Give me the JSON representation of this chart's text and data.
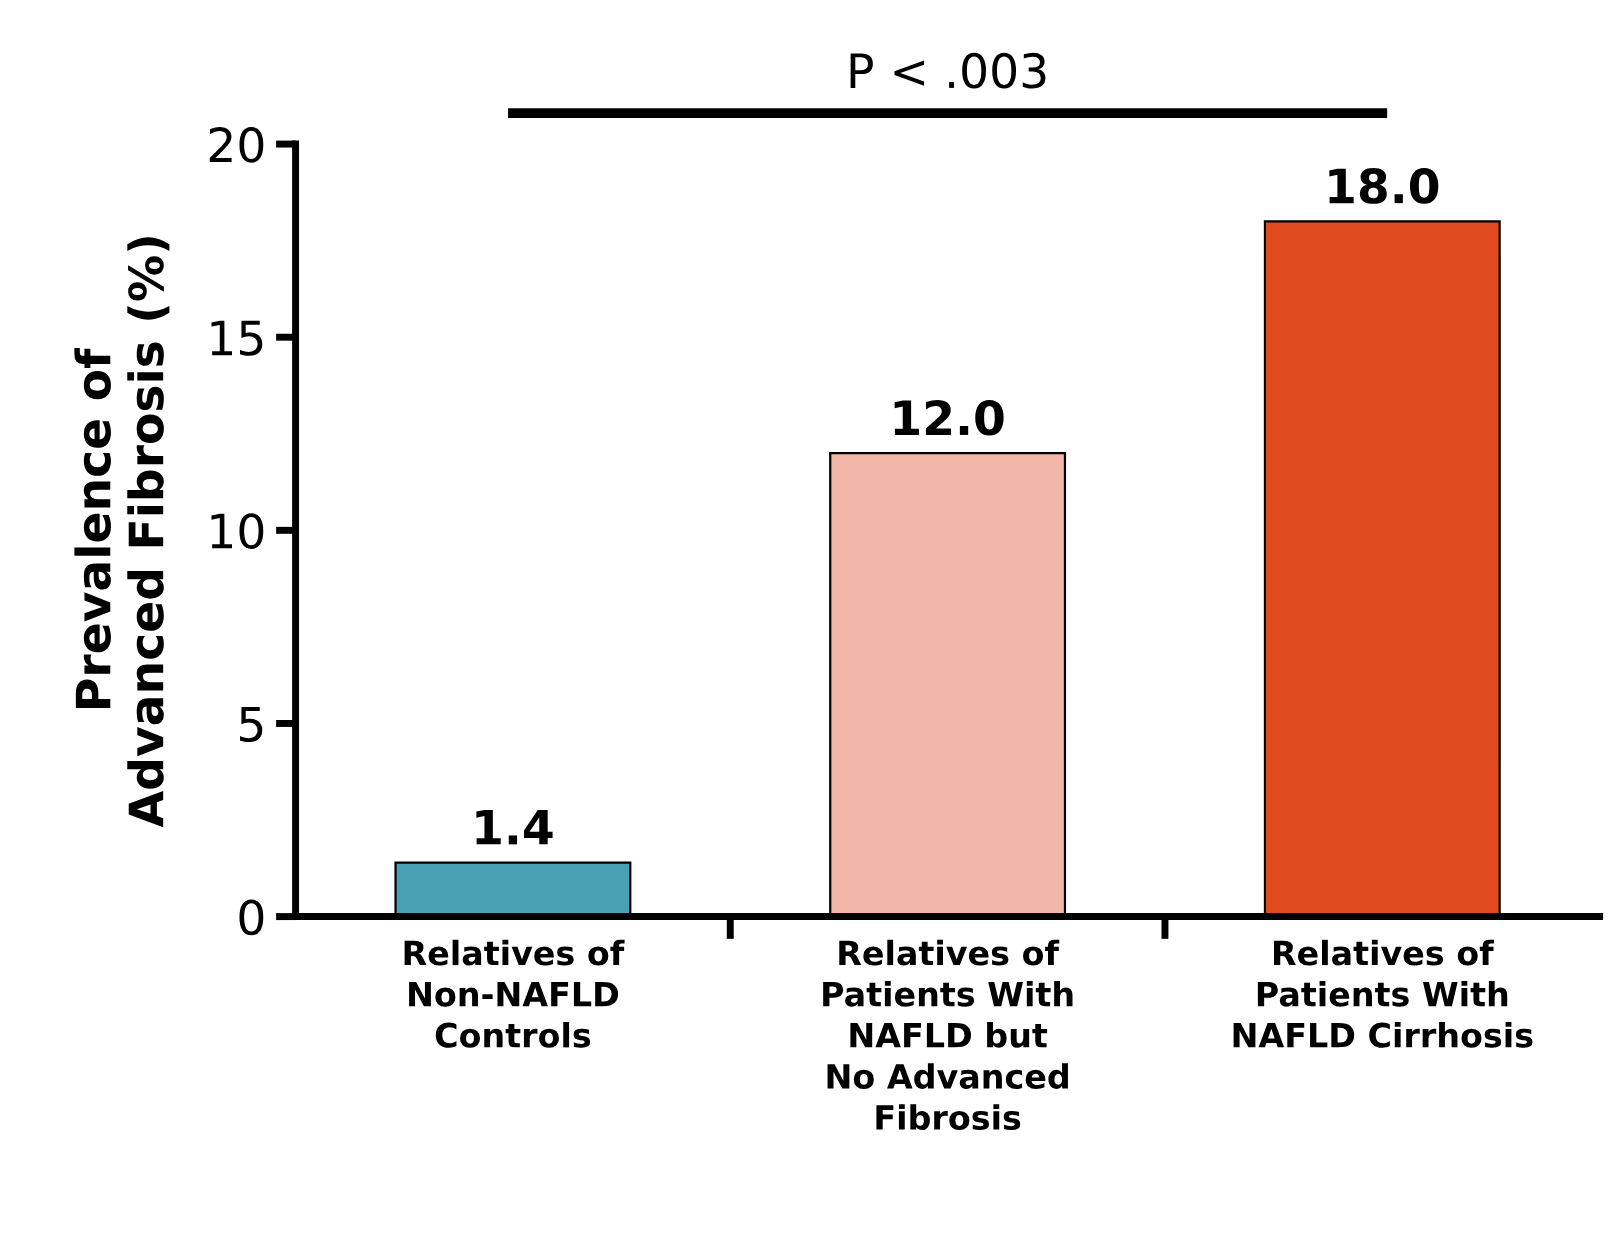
{
  "chart_data": {
    "type": "bar",
    "ylabel": "Prevalence of\nAdvanced Fibrosis (%)",
    "categories": [
      "Relatives of\nNon-NAFLD\nControls",
      "Relatives of\nPatients With\nNAFLD but\nNo Advanced\nFibrosis",
      "Relatives of\nPatients With\nNAFLD Cirrhosis"
    ],
    "values": [
      1.4,
      12.0,
      18.0
    ],
    "colors": [
      "#4aa0b5",
      "#f2b7a6",
      "#e04a1f"
    ],
    "value_labels": [
      "1.4",
      "12.0",
      "18.0"
    ],
    "ylim": [
      0,
      20
    ],
    "yticks": [
      0,
      5,
      10,
      15,
      20
    ],
    "annotations": [
      "P < .003"
    ],
    "grid": false,
    "legend": false
  }
}
